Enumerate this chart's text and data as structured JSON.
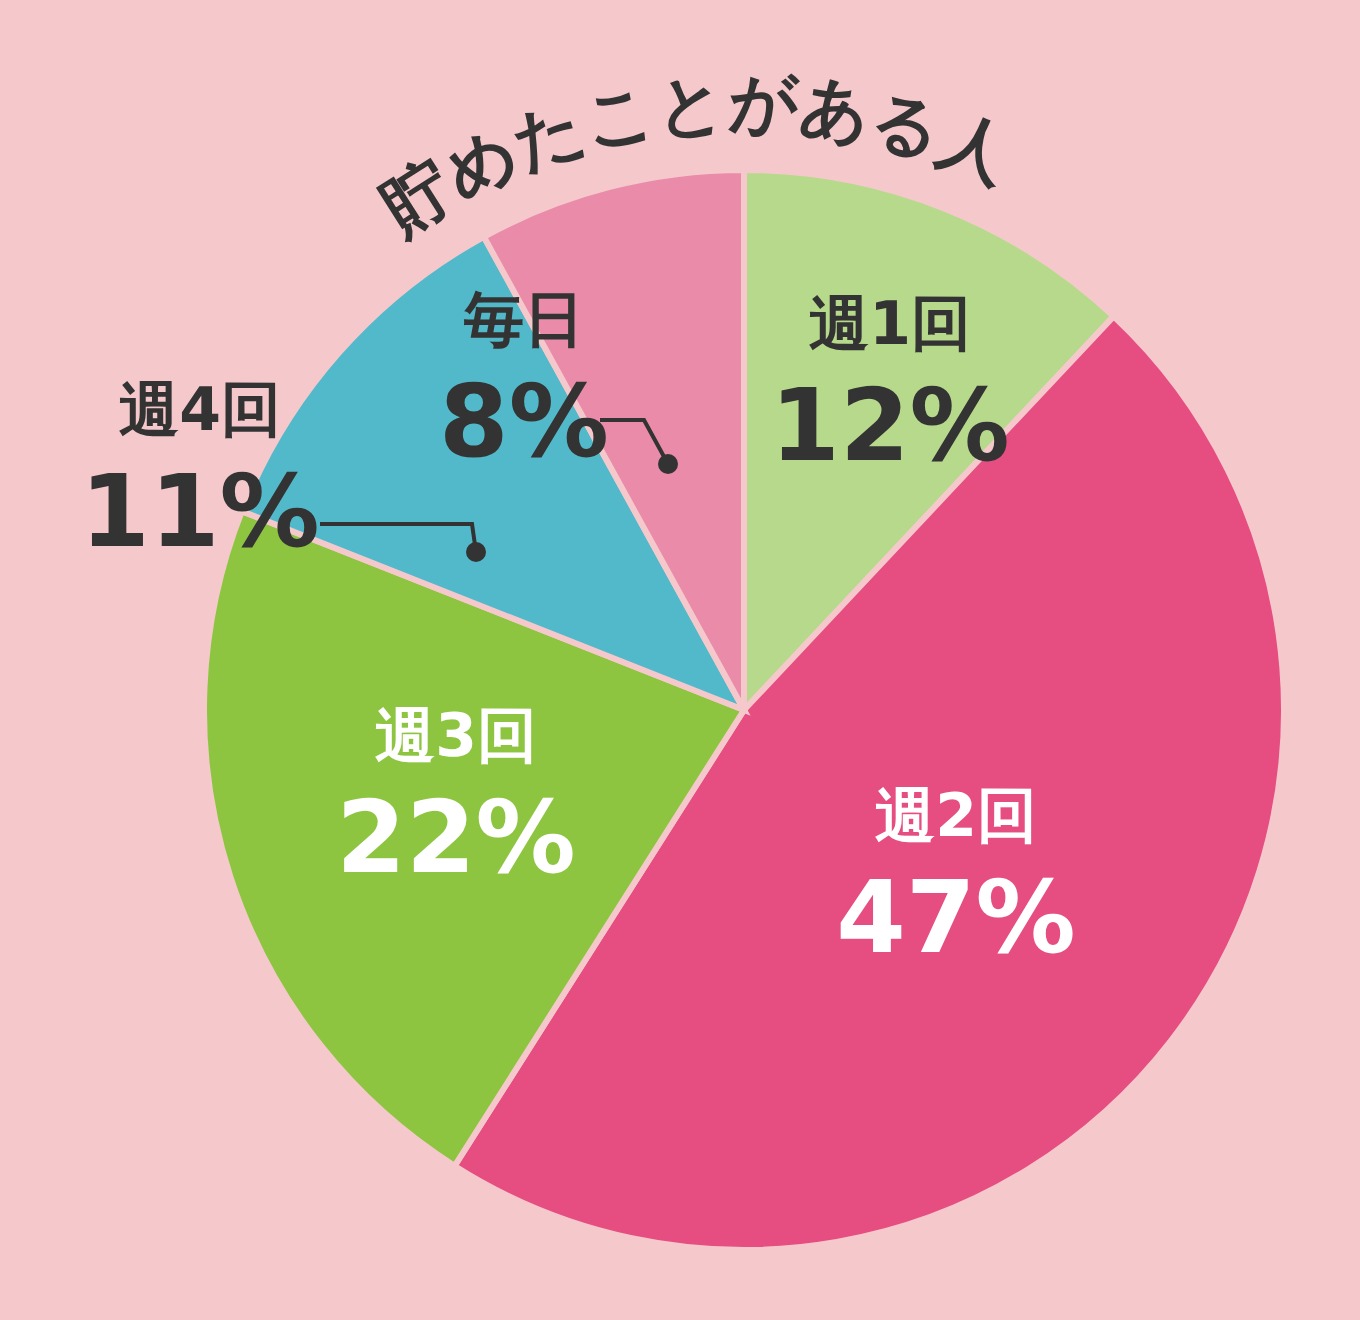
{
  "chart_data": {
    "type": "pie",
    "title": "貯めたことがある人",
    "categories": [
      "週1回",
      "週2回",
      "週3回",
      "週4回",
      "毎日"
    ],
    "values": [
      12,
      47,
      22,
      11,
      8
    ],
    "value_labels": [
      "12%",
      "47%",
      "22%",
      "11%",
      "8%"
    ],
    "colors": [
      "#b7d98b",
      "#e64d80",
      "#8dc540",
      "#52b9cb",
      "#e98ba9"
    ]
  }
}
